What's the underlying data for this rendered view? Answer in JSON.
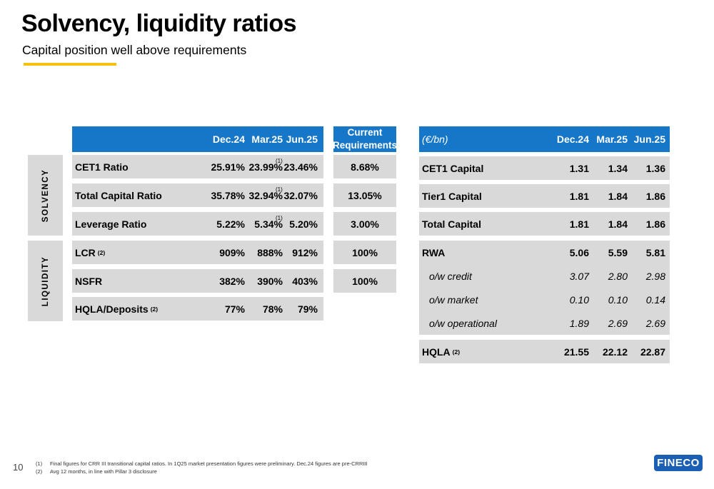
{
  "title": "Solvency, liquidity ratios",
  "subtitle": "Capital position well above requirements",
  "left_table": {
    "headers": [
      "Dec.24",
      "Mar.25",
      "Jun.25"
    ],
    "requirements_header": "Current Requirements",
    "solvency_label": "SOLVENCY",
    "liquidity_label": "LIQUIDITY",
    "rows": [
      {
        "label": "CET1 Ratio",
        "sup": "",
        "dec": "25.91%",
        "mar": "23.99%",
        "mar_note": "(1)",
        "jun": "23.46%",
        "req": "8.68%"
      },
      {
        "label": "Total Capital Ratio",
        "sup": "",
        "dec": "35.78%",
        "mar": "32.94%",
        "mar_note": "(1)",
        "jun": "32.07%",
        "req": "13.05%"
      },
      {
        "label": "Leverage Ratio",
        "sup": "",
        "dec": "5.22%",
        "mar": "5.34%",
        "mar_note": "(1)",
        "jun": "5.20%",
        "req": "3.00%"
      },
      {
        "label": "LCR",
        "sup": "(2)",
        "dec": "909%",
        "mar": "888%",
        "mar_note": "",
        "jun": "912%",
        "req": "100%"
      },
      {
        "label": "NSFR",
        "sup": "",
        "dec": "382%",
        "mar": "390%",
        "mar_note": "",
        "jun": "403%",
        "req": "100%"
      },
      {
        "label": "HQLA/Deposits",
        "sup": "(2)",
        "dec": "77%",
        "mar": "78%",
        "mar_note": "",
        "jun": "79%",
        "req": ""
      }
    ]
  },
  "right_table": {
    "unit": "(€/bn)",
    "headers": [
      "Dec.24",
      "Mar.25",
      "Jun.25"
    ],
    "rows": [
      {
        "label": "CET1 Capital",
        "sup": "",
        "dec": "1.31",
        "mar": "1.34",
        "jun": "1.36"
      },
      {
        "label": "Tier1 Capital",
        "sup": "",
        "dec": "1.81",
        "mar": "1.84",
        "jun": "1.86"
      },
      {
        "label": "Total Capital",
        "sup": "",
        "dec": "1.81",
        "mar": "1.84",
        "jun": "1.86"
      },
      {
        "label": "RWA",
        "sup": "",
        "dec": "5.06",
        "mar": "5.59",
        "jun": "5.81"
      },
      {
        "label": "o/w credit",
        "sup": "",
        "dec": "3.07",
        "mar": "2.80",
        "jun": "2.98"
      },
      {
        "label": "o/w market",
        "sup": "",
        "dec": "0.10",
        "mar": "0.10",
        "jun": "0.14"
      },
      {
        "label": "o/w operational",
        "sup": "",
        "dec": "1.89",
        "mar": "2.69",
        "jun": "2.69"
      },
      {
        "label": "HQLA",
        "sup": "(2)",
        "dec": "21.55",
        "mar": "22.12",
        "jun": "22.87"
      }
    ]
  },
  "footnotes": [
    {
      "mark": "(1)",
      "text": "Final figures for CRR III transitional capital ratios. In 1Q25 market presentation figures were preliminary. Dec.24 figures are pre-CRRIII"
    },
    {
      "mark": "(2)",
      "text": "Avg 12 months, in line with Pillar 3 disclosure"
    }
  ],
  "page_number": "10",
  "logo_text": "FINECO"
}
